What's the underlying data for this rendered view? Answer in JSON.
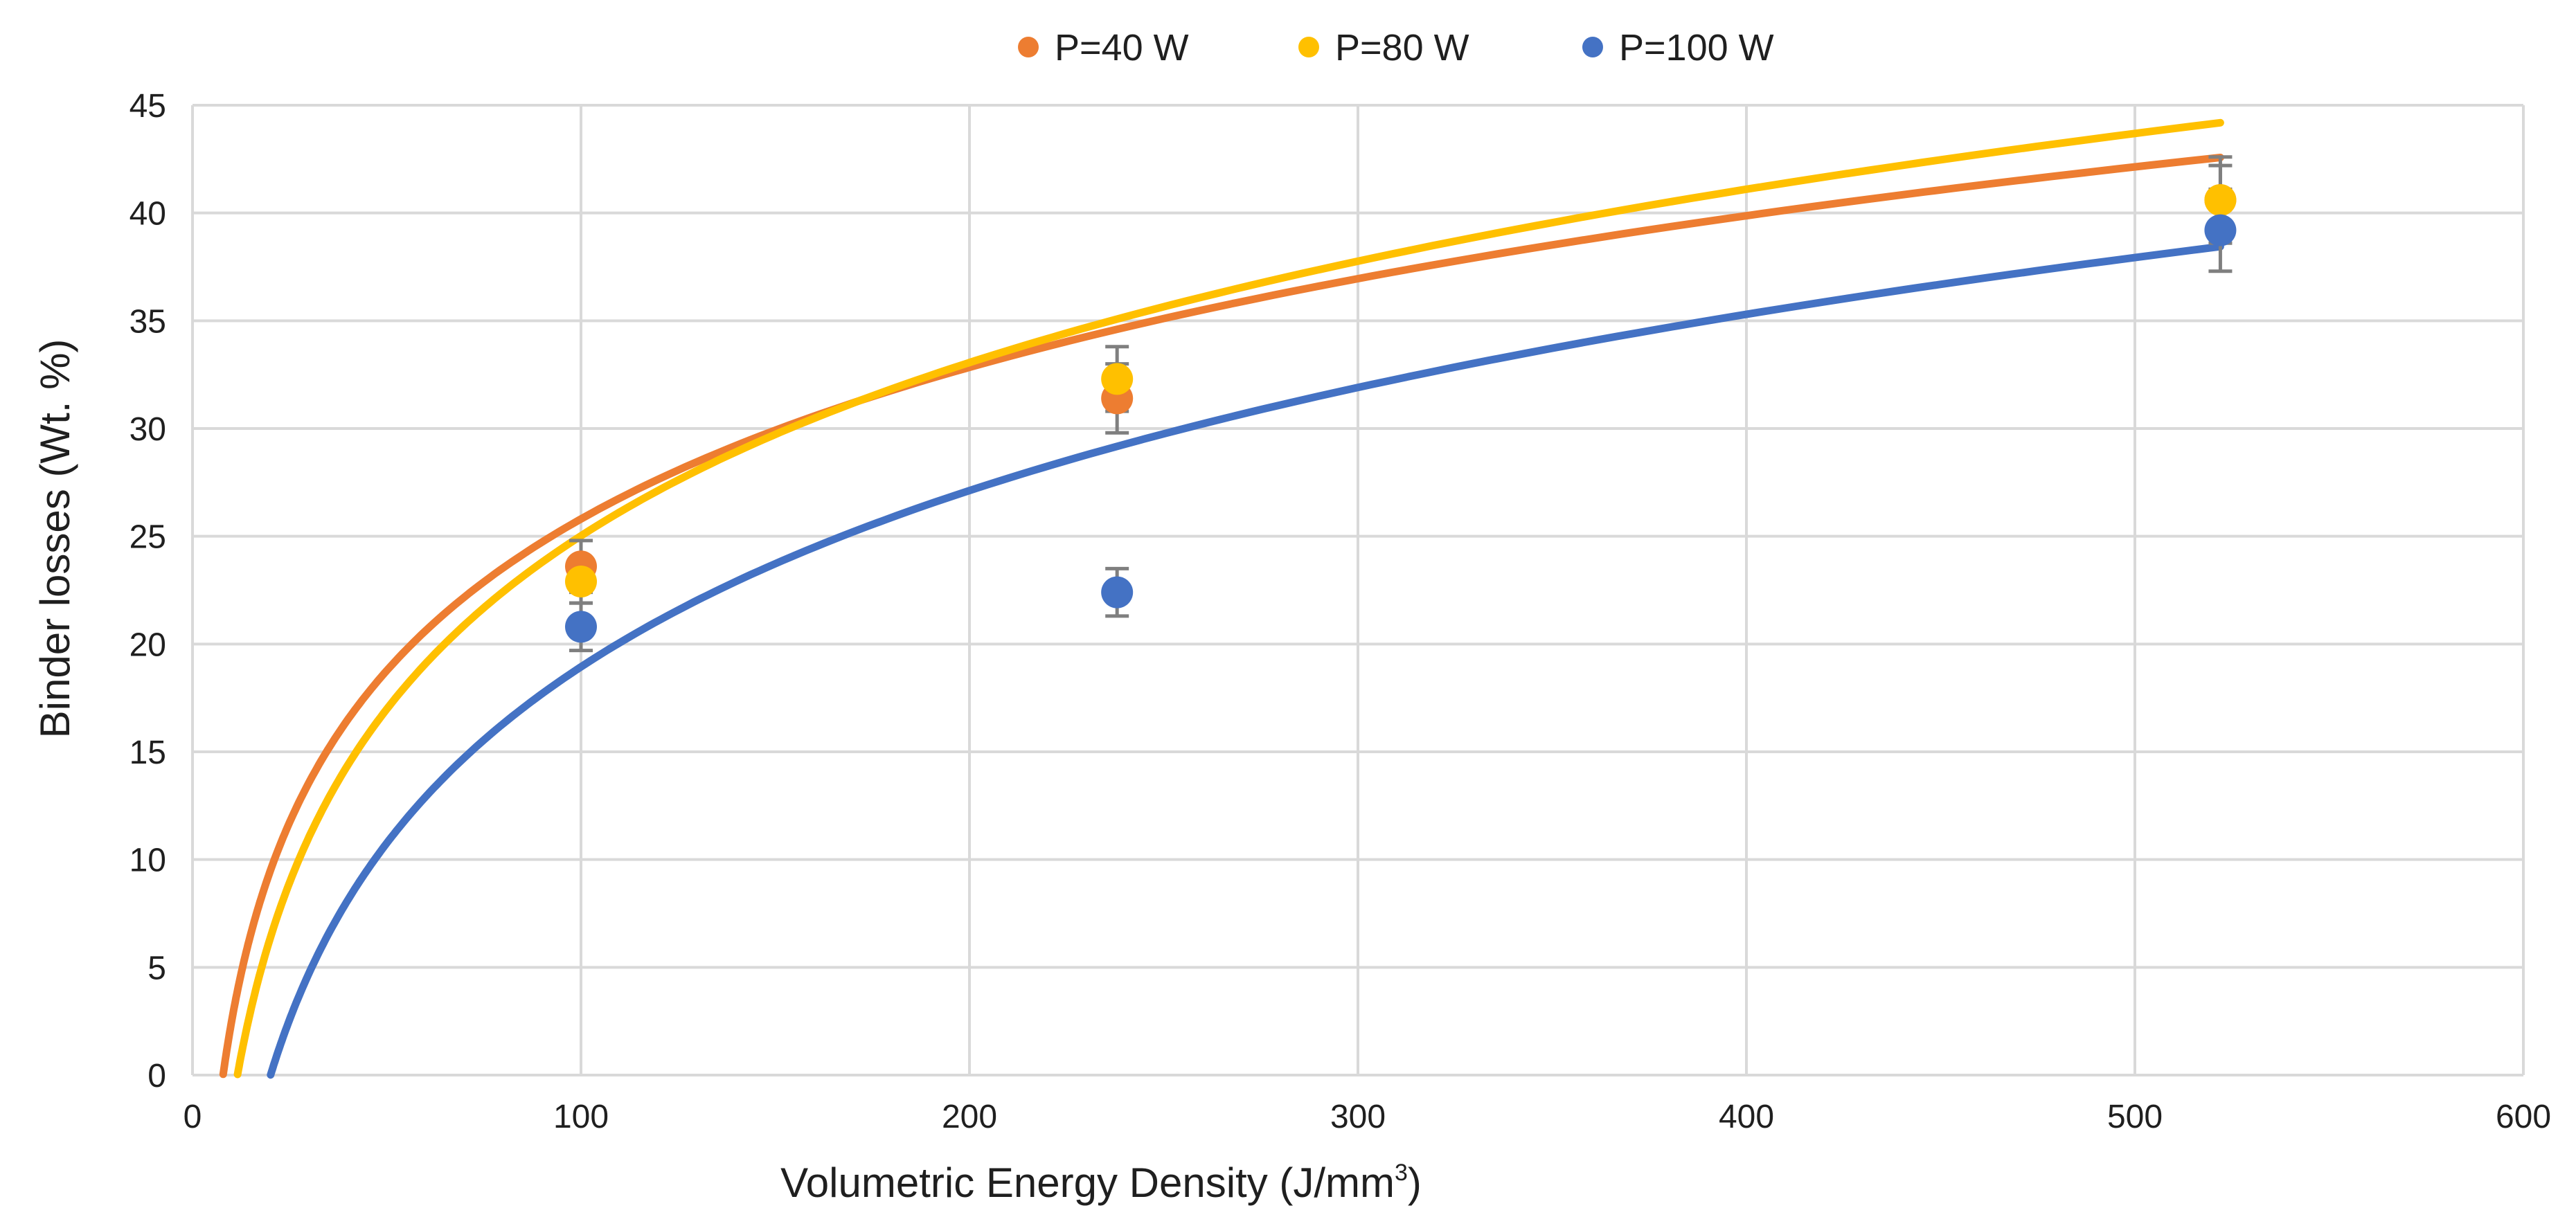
{
  "chart_data": {
    "type": "scatter",
    "title": "",
    "xlabel": {
      "main": "Volumetric Energy Density  (J/mm",
      "sup": "3",
      "close": ")"
    },
    "ylabel": "Binder losses (Wt. %)",
    "xlim": [
      0,
      600
    ],
    "ylim": [
      0,
      45
    ],
    "x_ticks": [
      0,
      100,
      200,
      300,
      400,
      500,
      600
    ],
    "y_ticks": [
      0,
      5,
      10,
      15,
      20,
      25,
      30,
      35,
      40,
      45
    ],
    "grid": true,
    "legend_position": "top-center",
    "series": [
      {
        "name": "P=40 W",
        "color": "#ED7D31",
        "points": [
          {
            "x": 100,
            "y": 23.6,
            "err": 1.2
          },
          {
            "x": 238,
            "y": 31.4,
            "err": 1.6
          },
          {
            "x": 522,
            "y": 40.6,
            "err": 2.0
          }
        ],
        "trendline": {
          "type": "log",
          "a": 10.15,
          "b": -20.94,
          "x_start": 7.9,
          "x_end": 522
        }
      },
      {
        "name": "P=80 W",
        "color": "#FFC000",
        "points": [
          {
            "x": 100,
            "y": 22.9,
            "err": 1.0
          },
          {
            "x": 238,
            "y": 32.3,
            "err": 1.5
          },
          {
            "x": 522,
            "y": 40.6,
            "err": 1.6
          }
        ],
        "trendline": {
          "type": "log",
          "a": 11.6,
          "b": -28.4,
          "x_start": 11.6,
          "x_end": 522
        }
      },
      {
        "name": "P=100 W",
        "color": "#4472C4",
        "points": [
          {
            "x": 100,
            "y": 20.8,
            "err": 1.1
          },
          {
            "x": 238,
            "y": 22.4,
            "err": 1.1
          },
          {
            "x": 522,
            "y": 39.2,
            "err": 1.9
          }
        ],
        "trendline": {
          "type": "log",
          "a": 11.8,
          "b": -35.4,
          "x_start": 20.1,
          "x_end": 522
        }
      }
    ]
  },
  "colors": {
    "grid": "#D9D9D9",
    "error_bar": "#7F7F7F",
    "text": "#1F1F1F"
  }
}
